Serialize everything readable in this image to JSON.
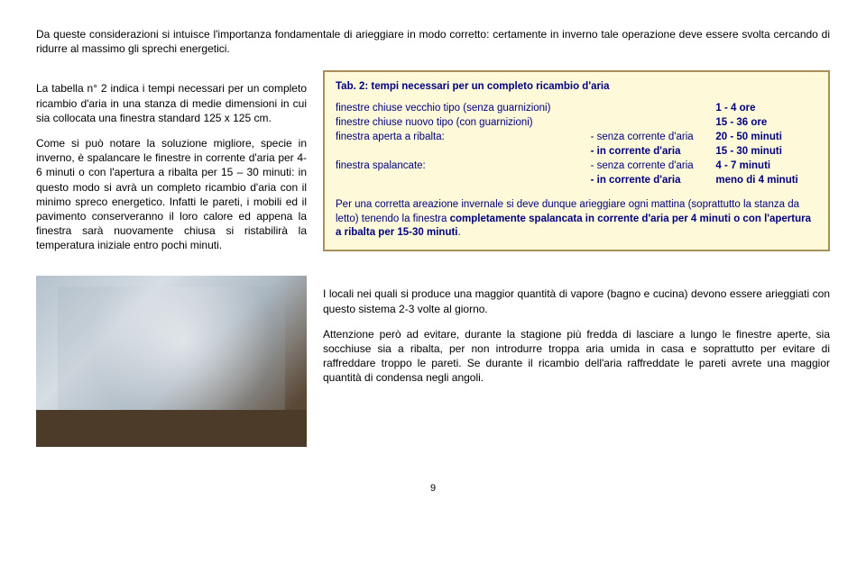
{
  "intro": "Da queste considerazioni si intuisce l'importanza fondamentale di arieggiare in modo corretto: certamente in inverno tale operazione deve essere svolta cercando di ridurre al massimo gli sprechi energetici.",
  "left_p1": "La tabella n° 2 indica i tempi necessari per un completo ricambio d'aria in una stanza di medie dimensioni in cui sia collocata una finestra standard 125 x 125 cm.",
  "left_p2": "Come si può notare la soluzione migliore, specie in inverno, è spalancare le finestre in corrente d'aria per 4-6 minuti o con l'apertura a ribalta per 15 – 30 minuti: in questo modo si avrà un completo ricambio d'aria con il minimo spreco energetico. Infatti le pareti, i mobili ed il pavimento conserveranno il loro calore ed appena la finestra sarà nuovamente chiusa si ristabilirà la temperatura iniziale entro pochi minuti.",
  "box": {
    "title": "Tab. 2: tempi necessari per un completo ricambio d'aria",
    "rows": {
      "r1": {
        "c1": "finestre chiuse vecchio tipo (senza guarnizioni)",
        "c2": "",
        "c3": "1 - 4 ore"
      },
      "r2": {
        "c1": "finestre chiuse nuovo tipo (con guarnizioni)",
        "c2": "",
        "c3": "15 - 36 ore"
      },
      "r3": {
        "c1": "finestra aperta a ribalta:",
        "c2": "- senza corrente d'aria",
        "c3": "20 - 50 minuti"
      },
      "r4": {
        "c1": "",
        "c2": "- in corrente d'aria",
        "c3": "15 - 30 minuti"
      },
      "r5": {
        "c1": "finestra spalancate:",
        "c2": "- senza corrente d'aria",
        "c3": "4 - 7 minuti"
      },
      "r6": {
        "c1": "",
        "c2": "- in corrente d'aria",
        "c3": "meno di 4 minuti"
      }
    },
    "note_a": "Per una corretta areazione invernale si deve dunque arieggiare ogni mattina (soprattutto la stanza da letto) tenendo la finestra ",
    "note_b": "completamente spalancata in corrente d'aria per 4 minuti o con l'apertura a ribalta per 15-30 minuti",
    "note_c": "."
  },
  "second_p1": "I locali nei quali si produce una maggior quantità di vapore (bagno e cucina) devono essere arieggiati con questo sistema 2-3 volte al giorno.",
  "second_p2": "Attenzione però ad evitare, durante la stagione più fredda di lasciare a lungo le finestre aperte, sia socchiuse sia a ribalta, per non introdurre troppa aria umida in casa e soprattutto per evitare di raffreddare troppo le pareti. Se durante il ricambio dell'aria raffreddate le pareti avrete una maggior quantità di condensa negli angoli.",
  "pagenum": "9"
}
